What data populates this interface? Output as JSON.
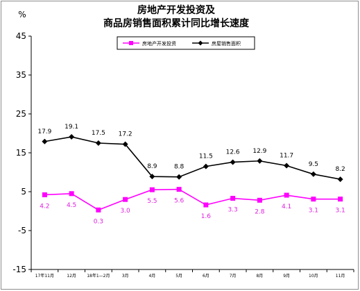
{
  "chart_data": {
    "type": "line",
    "title": [
      "房地产开发投资及",
      "商品房销售面积累计同比增长速度"
    ],
    "ylabel": "%",
    "ylim": [
      -15,
      45
    ],
    "yticks": [
      45,
      35,
      25,
      15,
      5,
      -5,
      -15
    ],
    "categories": [
      "17年11月",
      "12月",
      "18年1—2月",
      "3月",
      "4月",
      "5月",
      "6月",
      "7月",
      "8月",
      "9月",
      "10月",
      "11月"
    ],
    "legend_position": "top-center",
    "grid": false,
    "series": [
      {
        "name": "房地产开发投资",
        "color": "#ff00ff",
        "marker": "square",
        "values": [
          4.2,
          4.5,
          0.3,
          3.0,
          5.5,
          5.6,
          1.6,
          3.3,
          2.8,
          4.1,
          3.1,
          3.1
        ],
        "labels": [
          "4.2",
          "4.5",
          "0.3",
          "3.0",
          "5.5",
          "5.6",
          "1.6",
          "3.3",
          "2.8",
          "4.1",
          "3.1",
          "3.1"
        ]
      },
      {
        "name": "房屋销售面积",
        "color": "#000000",
        "marker": "diamond",
        "values": [
          17.9,
          19.1,
          17.5,
          17.2,
          8.9,
          8.8,
          11.5,
          12.6,
          12.9,
          11.7,
          9.5,
          8.2
        ],
        "labels": [
          "17.9",
          "19.1",
          "17.5",
          "17.2",
          "8.9",
          "8.8",
          "11.5",
          "12.6",
          "12.9",
          "11.7",
          "9.5",
          "8.2"
        ]
      }
    ]
  }
}
